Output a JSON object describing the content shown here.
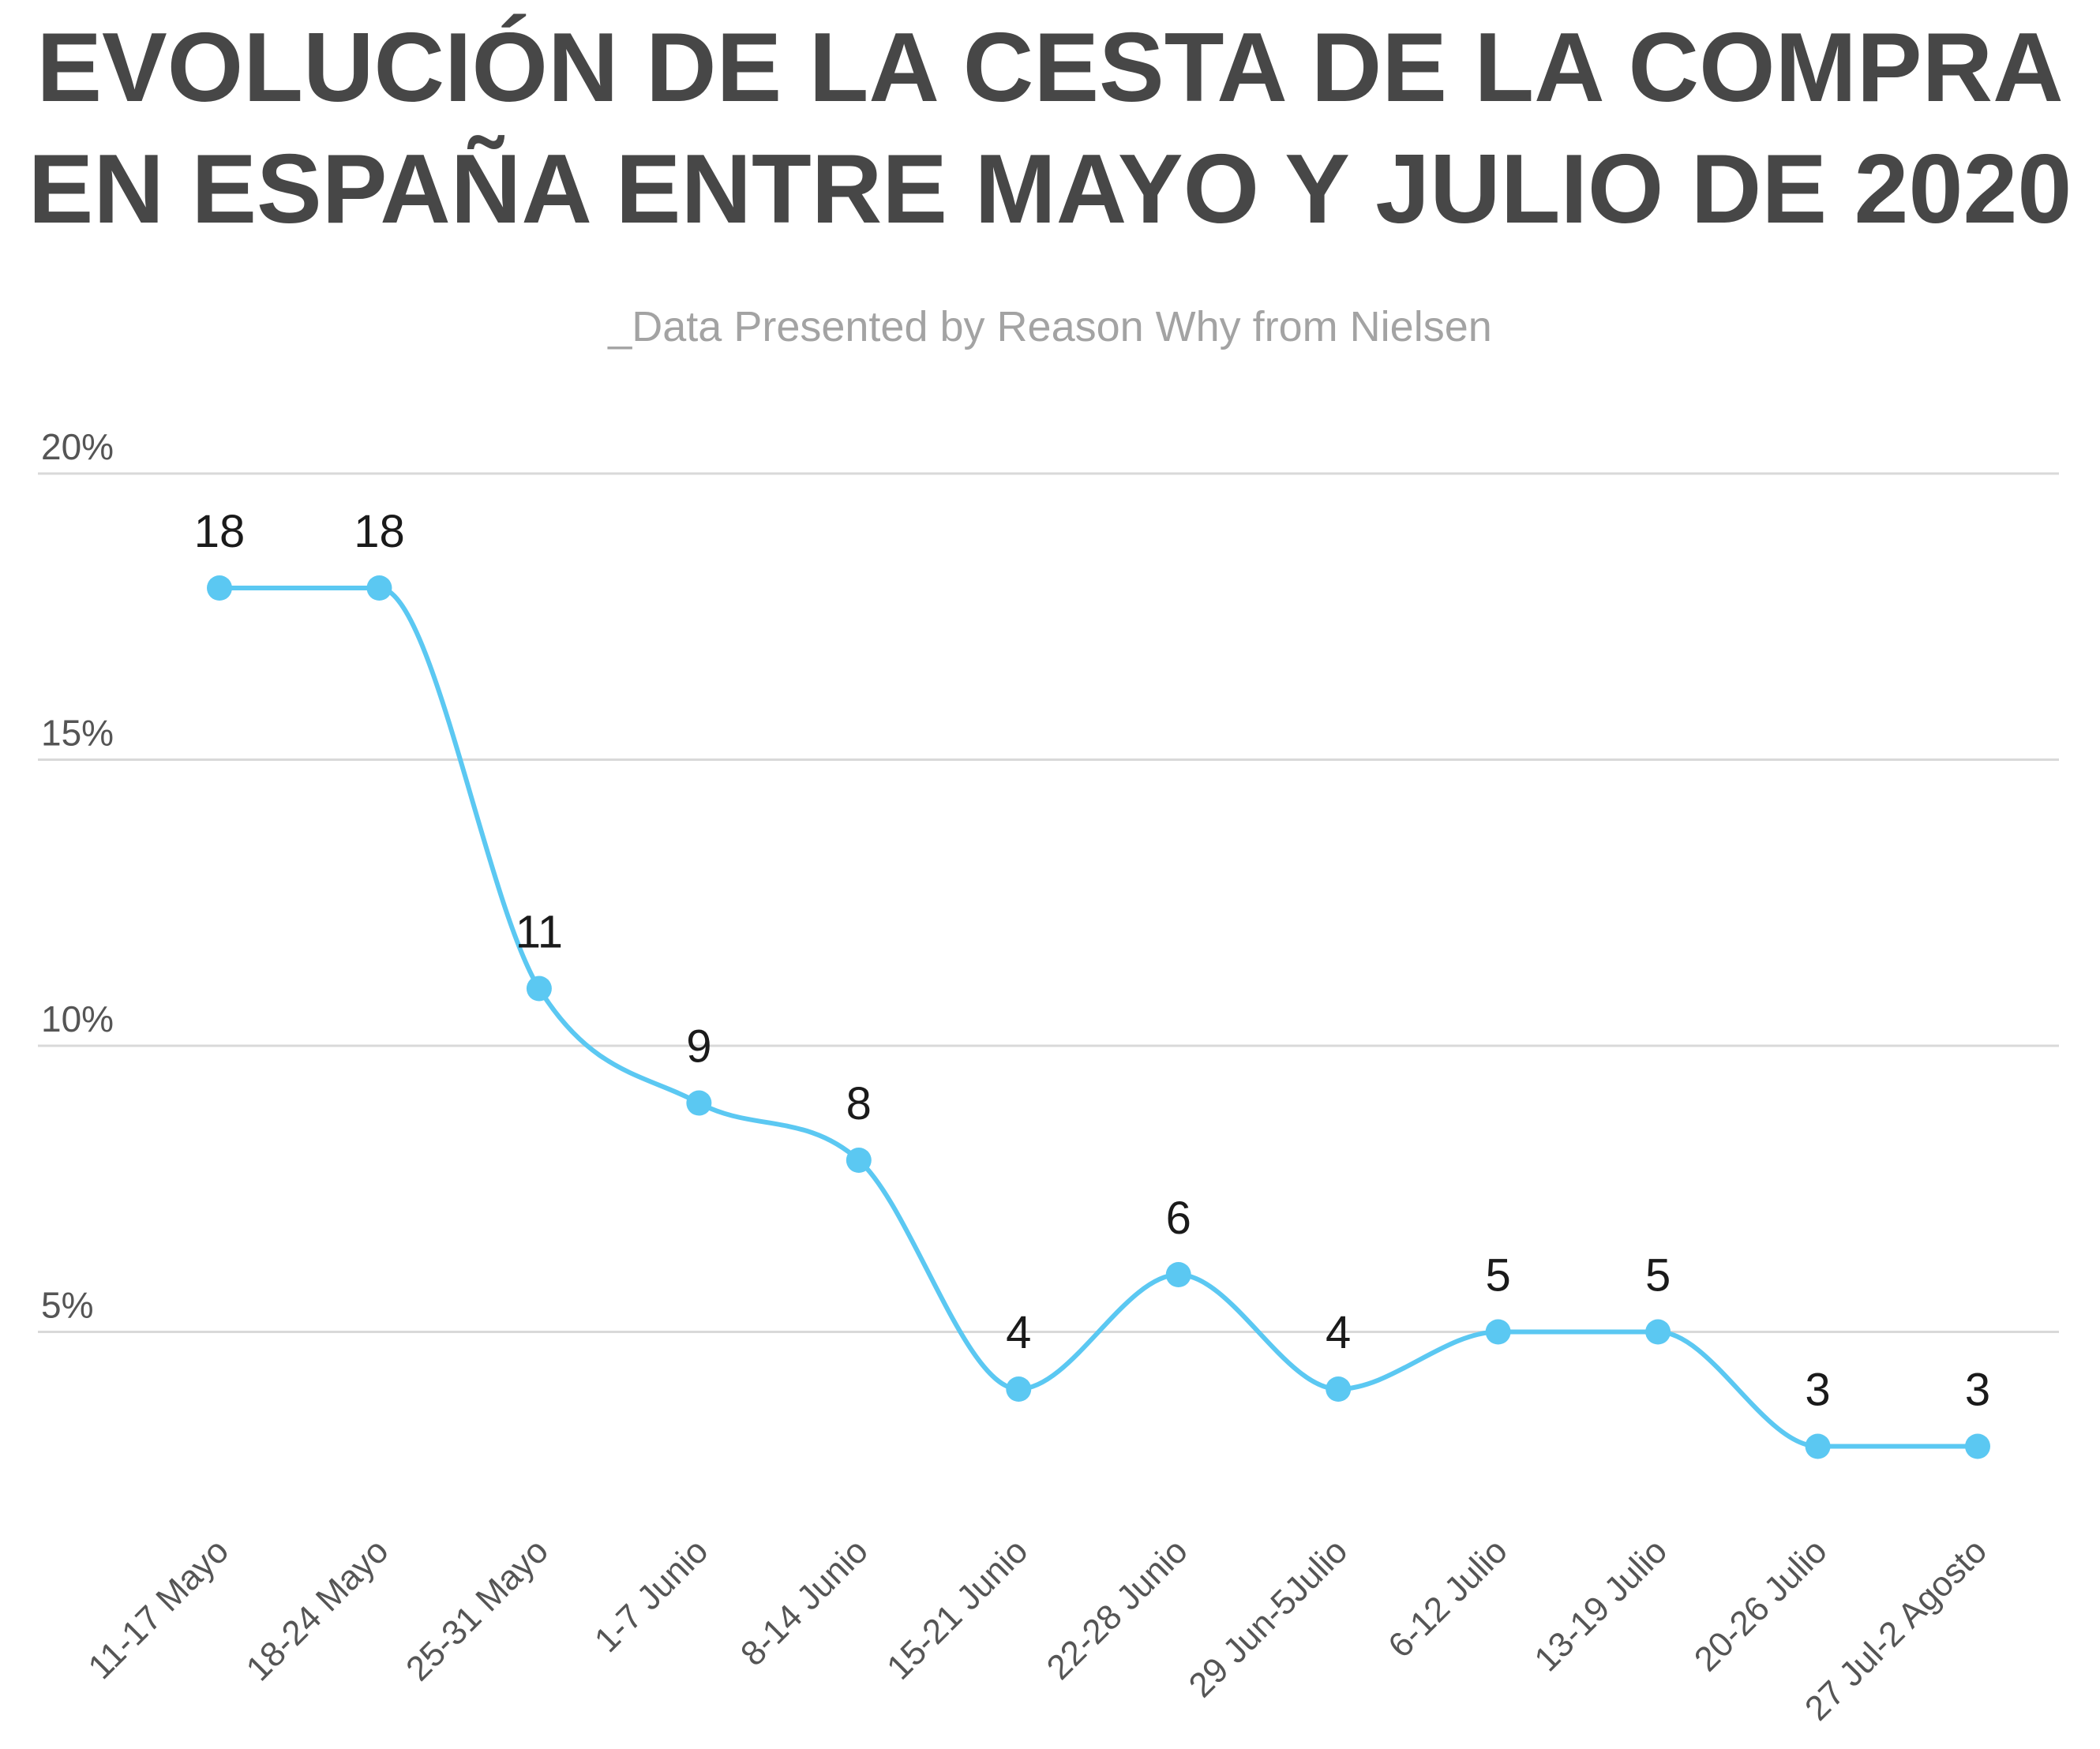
{
  "chart_data": {
    "type": "line",
    "title": [
      "EVOLUCIÓN DE LA CESTA DE LA COMPRA",
      "EN ESPAÑA ENTRE MAYO Y JULIO DE 2020"
    ],
    "subtitle": "_Data Presented by Reason Why from Nielsen",
    "categories": [
      "11-17 Mayo",
      "18-24 Mayo",
      "25-31 Mayo",
      "1-7 Junio",
      "8-14 Junio",
      "15-21 Junio",
      "22-28 Junio",
      "29 Jun-5Julio",
      "6-12 Julio",
      "13-19 Julio",
      "20-26 Julio",
      "27 Jul-2 Agosto"
    ],
    "series": [
      {
        "values": [
          18,
          18,
          11,
          9,
          8,
          4,
          6,
          4,
          5,
          5,
          3,
          3
        ],
        "color": "#5bc8f2"
      }
    ],
    "data_labels": [
      "18",
      "18",
      "11",
      "9",
      "8",
      "4",
      "6",
      "4",
      "5",
      "5",
      "3",
      "3"
    ],
    "y_ticks": [
      5,
      10,
      15,
      20
    ],
    "y_tick_labels": [
      "5%",
      "10%",
      "15%",
      "20%"
    ],
    "ylim": [
      0,
      20
    ],
    "xlabel": "",
    "ylabel": "",
    "grid": true,
    "legend": "none",
    "colors": {
      "title": "#474747",
      "subtitle": "#a3a3a3",
      "grid": "#d9d9d9",
      "line": "#5bc8f2"
    }
  }
}
